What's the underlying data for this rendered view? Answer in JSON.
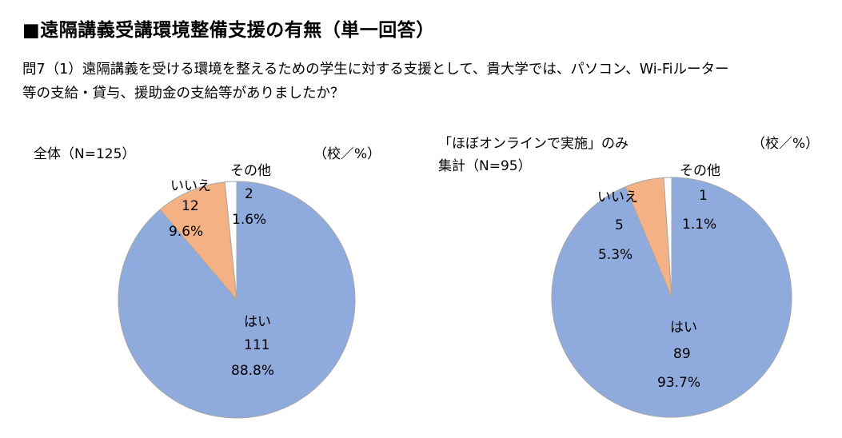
{
  "heading": "■遠隔講義受講環境整備支援の有無（単一回答）",
  "question": {
    "line1": "問7（1）遠隔講義を受ける環境を整えるための学生に対する支援として、貴大学では、パソコン、Wi-Fiルーター",
    "line2": "等の支給・貸与、援助金の支給等がありましたか？"
  },
  "colors": {
    "yes": "#8faadc",
    "no": "#f4b183",
    "other": "#ffffff",
    "stroke": "#a6a6a6"
  },
  "chart_data": [
    {
      "type": "pie",
      "title": "全体（N=125）",
      "unit_label": "（校／%）",
      "slices": [
        {
          "label": "はい",
          "count": "111",
          "percent": "88.8%",
          "value": 111
        },
        {
          "label": "いいえ",
          "count": "12",
          "percent": "9.6%",
          "value": 12
        },
        {
          "label": "その他",
          "count": "2",
          "percent": "1.6%",
          "value": 2
        }
      ]
    },
    {
      "type": "pie",
      "title_line1": "「ほぼオンラインで実施」のみ",
      "title_line2": "集計（N=95）",
      "unit_label": "（校／%）",
      "slices": [
        {
          "label": "はい",
          "count": "89",
          "percent": "93.7%",
          "value": 89
        },
        {
          "label": "いいえ",
          "count": "5",
          "percent": "5.3%",
          "value": 5
        },
        {
          "label": "その他",
          "count": "1",
          "percent": "1.1%",
          "value": 1
        }
      ]
    }
  ]
}
